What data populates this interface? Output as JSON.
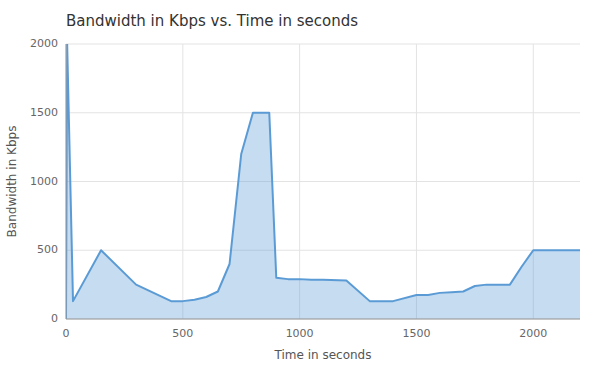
{
  "chart_data": {
    "type": "area",
    "title": "Bandwidth in Kbps vs. Time in seconds",
    "xlabel": "Time in seconds",
    "ylabel": "Bandwidth in Kbps",
    "x": [
      0,
      5,
      30,
      150,
      300,
      450,
      500,
      550,
      600,
      650,
      700,
      750,
      800,
      850,
      870,
      900,
      950,
      1000,
      1050,
      1100,
      1200,
      1300,
      1350,
      1400,
      1500,
      1550,
      1600,
      1650,
      1700,
      1750,
      1800,
      1900,
      1950,
      2000,
      2050,
      2100,
      2150,
      2200
    ],
    "values": [
      0,
      2000,
      130,
      500,
      250,
      130,
      130,
      140,
      160,
      200,
      400,
      1200,
      1500,
      1500,
      1500,
      300,
      290,
      290,
      285,
      285,
      280,
      130,
      130,
      130,
      175,
      175,
      190,
      195,
      200,
      240,
      250,
      250,
      380,
      500,
      500,
      500,
      500,
      500
    ],
    "color": "#5b9bd5",
    "xlim": [
      0,
      2200
    ],
    "ylim": [
      0,
      2000
    ],
    "xticks": [
      0,
      500,
      1000,
      1500,
      2000
    ],
    "yticks": [
      0,
      500,
      1000,
      1500,
      2000
    ],
    "grid": true
  }
}
